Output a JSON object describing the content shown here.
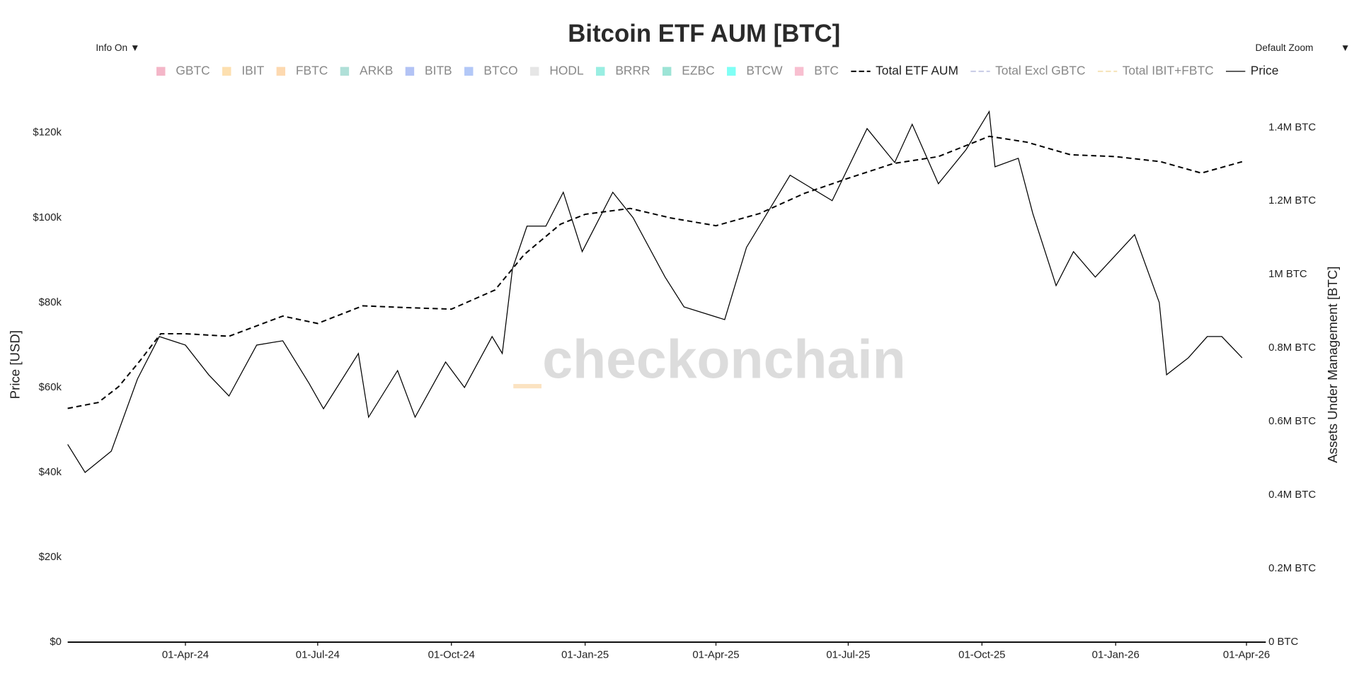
{
  "chart_data": {
    "type": "line",
    "title": "Bitcoin ETF AUM [BTC]",
    "info_toggle": "Info On ▼",
    "zoom_menu": "Default Zoom",
    "zoom_arrow": "▼",
    "watermark": "checkonchain",
    "y_label": "Price [USD]",
    "y2_label": "Assets Under Management [BTC]",
    "xlim": [
      "2024-01-11",
      "2026-04-01"
    ],
    "xticks": [
      {
        "value": "2024-04-01",
        "label": "01-Apr-24"
      },
      {
        "value": "2024-07-01",
        "label": "01-Jul-24"
      },
      {
        "value": "2024-10-01",
        "label": "01-Oct-24"
      },
      {
        "value": "2025-01-01",
        "label": "01-Jan-25"
      },
      {
        "value": "2025-04-01",
        "label": "01-Apr-25"
      },
      {
        "value": "2025-07-01",
        "label": "01-Jul-25"
      },
      {
        "value": "2025-10-01",
        "label": "01-Oct-25"
      },
      {
        "value": "2026-01-01",
        "label": "01-Jan-26"
      },
      {
        "value": "2026-04-01",
        "label": "01-Apr-26"
      }
    ],
    "ylim": [
      0,
      120000
    ],
    "yticks": [
      {
        "value": 0,
        "label": "$0"
      },
      {
        "value": 20000,
        "label": "$20k"
      },
      {
        "value": 40000,
        "label": "$40k"
      },
      {
        "value": 60000,
        "label": "$60k"
      },
      {
        "value": 80000,
        "label": "$80k"
      },
      {
        "value": 100000,
        "label": "$100k"
      },
      {
        "value": 120000,
        "label": "$120k"
      }
    ],
    "y2lim": [
      0,
      1400000
    ],
    "y2ticks": [
      {
        "value": 0,
        "label": "0 BTC"
      },
      {
        "value": 200000,
        "label": "0.2M BTC"
      },
      {
        "value": 400000,
        "label": "0.4M BTC"
      },
      {
        "value": 600000,
        "label": "0.6M BTC"
      },
      {
        "value": 800000,
        "label": "0.8M BTC"
      },
      {
        "value": 1000000,
        "label": "1M BTC"
      },
      {
        "value": 1200000,
        "label": "1.2M BTC"
      },
      {
        "value": 1400000,
        "label": "1.4M BTC"
      }
    ],
    "series": [
      {
        "name": "GBTC",
        "color": "#f4b6c8",
        "visible": false
      },
      {
        "name": "IBIT",
        "color": "#fde0b0",
        "visible": false
      },
      {
        "name": "FBTC",
        "color": "#fdd9b0",
        "visible": false
      },
      {
        "name": "ARKB",
        "color": "#b0e0d8",
        "visible": false
      },
      {
        "name": "BITB",
        "color": "#b3c3f5",
        "visible": false
      },
      {
        "name": "BTCO",
        "color": "#b3c8f7",
        "visible": false
      },
      {
        "name": "HODL",
        "color": "#e6e6e6",
        "visible": false
      },
      {
        "name": "BRRR",
        "color": "#99eee2",
        "visible": false
      },
      {
        "name": "EZBC",
        "color": "#9de4d6",
        "visible": false
      },
      {
        "name": "BTCW",
        "color": "#80fff5",
        "visible": false
      },
      {
        "name": "BTC",
        "color": "#f8bfd0",
        "visible": false
      },
      {
        "name": "Total ETF AUM",
        "color": "#000000",
        "visible": true,
        "dash": true,
        "axis": "y2",
        "x": [
          "2024-01-11",
          "2024-02-01",
          "2024-02-15",
          "2024-03-01",
          "2024-03-15",
          "2024-04-01",
          "2024-05-01",
          "2024-06-07",
          "2024-07-01",
          "2024-08-01",
          "2024-09-01",
          "2024-10-01",
          "2024-10-31",
          "2024-11-20",
          "2024-12-15",
          "2025-01-01",
          "2025-02-01",
          "2025-03-01",
          "2025-04-01",
          "2025-05-01",
          "2025-06-01",
          "2025-07-01",
          "2025-08-01",
          "2025-09-01",
          "2025-10-06",
          "2025-11-01",
          "2025-12-01",
          "2026-01-01",
          "2026-02-01",
          "2026-03-01",
          "2026-03-29"
        ],
        "values": [
          636000,
          652000,
          695000,
          767000,
          839000,
          839000,
          832000,
          887000,
          867000,
          915000,
          910000,
          906000,
          958000,
          1054000,
          1137000,
          1164000,
          1180000,
          1154000,
          1133000,
          1166000,
          1221000,
          1262000,
          1302000,
          1321000,
          1376000,
          1360000,
          1326000,
          1321000,
          1307000,
          1276000,
          1307000
        ]
      },
      {
        "name": "Total Excl GBTC",
        "color": "#c8cbe6",
        "visible": false,
        "dash": true
      },
      {
        "name": "Total IBIT+FBTC",
        "color": "#f5e3b8",
        "visible": false,
        "dash": true
      },
      {
        "name": "Price",
        "color": "#000000",
        "visible": true,
        "dash": false,
        "x": [
          "2024-01-11",
          "2024-01-23",
          "2024-02-10",
          "2024-02-28",
          "2024-03-14",
          "2024-04-01",
          "2024-04-17",
          "2024-05-01",
          "2024-05-20",
          "2024-06-07",
          "2024-06-25",
          "2024-07-05",
          "2024-07-29",
          "2024-08-05",
          "2024-08-25",
          "2024-09-06",
          "2024-09-27",
          "2024-10-10",
          "2024-10-29",
          "2024-11-05",
          "2024-11-12",
          "2024-11-22",
          "2024-12-05",
          "2024-12-17",
          "2024-12-30",
          "2025-01-20",
          "2025-02-03",
          "2025-02-25",
          "2025-03-10",
          "2025-04-07",
          "2025-04-22",
          "2025-05-22",
          "2025-06-20",
          "2025-07-14",
          "2025-08-02",
          "2025-08-14",
          "2025-09-01",
          "2025-09-20",
          "2025-10-06",
          "2025-10-10",
          "2025-10-26",
          "2025-11-05",
          "2025-11-21",
          "2025-12-03",
          "2025-12-18",
          "2026-01-14",
          "2026-01-31",
          "2026-02-05",
          "2026-02-20",
          "2026-03-05",
          "2026-03-15",
          "2026-03-29"
        ],
        "values": [
          46600,
          40000,
          45000,
          62000,
          72000,
          70000,
          63000,
          58000,
          70000,
          71000,
          61000,
          55000,
          68000,
          53000,
          64000,
          53000,
          66000,
          60000,
          72000,
          68000,
          88000,
          98000,
          98000,
          106000,
          92000,
          106000,
          100000,
          86000,
          79000,
          76000,
          93000,
          110000,
          104000,
          121000,
          113000,
          122000,
          108000,
          116000,
          125000,
          112000,
          114000,
          101000,
          84000,
          92000,
          86000,
          96000,
          80000,
          63000,
          67000,
          72000,
          72000,
          67000
        ]
      }
    ]
  }
}
